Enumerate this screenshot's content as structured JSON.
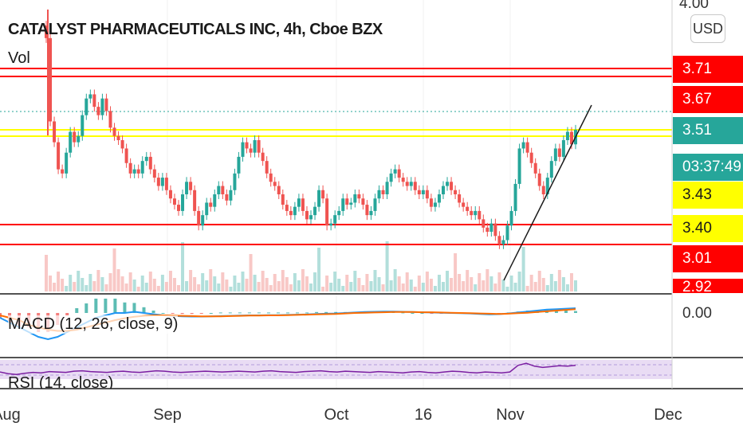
{
  "header": {
    "title": "CATALYST PHARMACEUTICALS INC, 4h, Cboe BZX",
    "volume_label": "Vol",
    "currency_button": "USD"
  },
  "indicators": {
    "macd_label": "MACD (12, 26, close, 9)",
    "rsi_label": "RSI (14, close)"
  },
  "price_axis": {
    "top_tick": "4.00",
    "macd_zero_tick": "0.00",
    "tags": [
      {
        "label": "3.71",
        "bg": "#ff0000",
        "fg": "#ffffff"
      },
      {
        "label": "3.67",
        "bg": "#ff0000",
        "fg": "#ffffff"
      },
      {
        "label": "3.51",
        "bg": "#26a69a",
        "fg": "#ffffff"
      },
      {
        "label": "03:37:49",
        "bg": "#26a69a",
        "fg": "#ffffff"
      },
      {
        "label": "3.43",
        "bg": "#ffff00",
        "fg": "#1a1a1a"
      },
      {
        "label": "3.40",
        "bg": "#ffff00",
        "fg": "#1a1a1a"
      },
      {
        "label": "3.01",
        "bg": "#ff0000",
        "fg": "#ffffff"
      },
      {
        "label": "2.92",
        "bg": "#ff0000",
        "fg": "#ffffff"
      }
    ]
  },
  "time_axis": [
    "Aug",
    "Sep",
    "Oct",
    "16",
    "Nov",
    "Dec"
  ],
  "colors": {
    "up": "#26a69a",
    "down": "#ef5350",
    "red_level": "#ff0000",
    "yellow_level": "#ffff00",
    "macd_line": "#2196f3",
    "signal_line": "#ff6d00",
    "rsi_line": "#7b1fa2",
    "rsi_band": "#e9dcf4"
  },
  "chart_data": {
    "type": "candlestick",
    "symbol": "CATALYST PHARMACEUTICALS INC",
    "interval": "4h",
    "exchange": "Cboe BZX",
    "horizontal_levels": [
      {
        "price": 3.71,
        "color": "red"
      },
      {
        "price": 3.67,
        "color": "red"
      },
      {
        "price": 3.43,
        "color": "yellow"
      },
      {
        "price": 3.4,
        "color": "yellow"
      },
      {
        "price": 3.01,
        "color": "red"
      },
      {
        "price": 2.92,
        "color": "red"
      }
    ],
    "current_price": 3.51,
    "bar_countdown": "03:37:49",
    "trendline": "ascending support from the late-October low to the latest bar",
    "xlabels": [
      "Aug",
      "Sep",
      "Oct",
      "16",
      "Nov",
      "Dec"
    ],
    "closes": [
      3.95,
      3.55,
      3.45,
      3.32,
      3.3,
      3.4,
      3.5,
      3.45,
      3.48,
      3.58,
      3.66,
      3.68,
      3.62,
      3.58,
      3.66,
      3.6,
      3.52,
      3.48,
      3.46,
      3.42,
      3.35,
      3.3,
      3.32,
      3.3,
      3.36,
      3.38,
      3.32,
      3.28,
      3.24,
      3.28,
      3.22,
      3.18,
      3.15,
      3.12,
      3.2,
      3.26,
      3.22,
      3.12,
      3.05,
      3.1,
      3.16,
      3.14,
      3.2,
      3.24,
      3.2,
      3.17,
      3.22,
      3.3,
      3.38,
      3.45,
      3.42,
      3.4,
      3.46,
      3.4,
      3.36,
      3.3,
      3.26,
      3.24,
      3.2,
      3.15,
      3.12,
      3.1,
      3.14,
      3.18,
      3.12,
      3.08,
      3.1,
      3.14,
      3.22,
      3.18,
      3.05,
      3.06,
      3.1,
      3.12,
      3.18,
      3.15,
      3.16,
      3.2,
      3.18,
      3.15,
      3.1,
      3.12,
      3.18,
      3.22,
      3.2,
      3.26,
      3.3,
      3.32,
      3.28,
      3.26,
      3.24,
      3.26,
      3.22,
      3.2,
      3.22,
      3.18,
      3.14,
      3.16,
      3.2,
      3.24,
      3.26,
      3.22,
      3.2,
      3.16,
      3.14,
      3.12,
      3.1,
      3.12,
      3.08,
      3.04,
      3.02,
      3.06,
      3.0,
      2.96,
      2.98,
      3.05,
      3.12,
      3.25,
      3.42,
      3.45,
      3.4,
      3.35,
      3.3,
      3.24,
      3.2,
      3.28,
      3.36,
      3.42,
      3.38,
      3.46,
      3.5,
      3.44,
      3.51
    ],
    "macd": [
      -0.02,
      -0.04,
      -0.06,
      -0.08,
      -0.1,
      -0.11,
      -0.1,
      -0.08,
      -0.06,
      -0.04,
      -0.02,
      -0.01,
      0.0,
      0.0,
      0.005,
      0.0,
      -0.005,
      -0.01,
      -0.012,
      -0.014,
      -0.015,
      -0.015,
      -0.014,
      -0.013,
      -0.012,
      -0.011,
      -0.01,
      -0.01,
      -0.009,
      -0.009,
      -0.008,
      -0.007,
      -0.006,
      -0.004,
      -0.003,
      -0.002,
      0.0,
      0.002,
      0.004,
      0.005,
      0.006,
      0.006,
      0.005,
      0.004,
      0.003,
      0.002,
      0.001,
      0.0,
      -0.001,
      -0.002,
      -0.004,
      -0.006,
      -0.005,
      -0.002,
      0.002,
      0.006,
      0.01,
      0.014,
      0.016,
      0.018,
      0.02
    ],
    "signal": [
      -0.01,
      -0.02,
      -0.03,
      -0.05,
      -0.06,
      -0.07,
      -0.075,
      -0.075,
      -0.07,
      -0.06,
      -0.05,
      -0.04,
      -0.03,
      -0.022,
      -0.016,
      -0.012,
      -0.01,
      -0.01,
      -0.011,
      -0.012,
      -0.013,
      -0.014,
      -0.014,
      -0.014,
      -0.013,
      -0.012,
      -0.011,
      -0.011,
      -0.01,
      -0.01,
      -0.009,
      -0.008,
      -0.007,
      -0.006,
      -0.005,
      -0.004,
      -0.002,
      0.0,
      0.001,
      0.002,
      0.003,
      0.004,
      0.004,
      0.004,
      0.003,
      0.003,
      0.002,
      0.001,
      0.0,
      -0.001,
      -0.002,
      -0.003,
      -0.004,
      -0.003,
      -0.001,
      0.001,
      0.004,
      0.007,
      0.01,
      0.013,
      0.016
    ],
    "rsi": [
      44,
      40,
      38,
      41,
      43,
      42,
      45,
      44,
      43,
      46,
      47,
      45,
      44,
      43,
      45,
      46,
      44,
      43,
      45,
      47,
      46,
      44,
      43,
      44,
      45,
      46,
      45,
      44,
      45,
      46,
      45,
      44,
      46,
      47,
      45,
      44,
      43,
      45,
      46,
      47,
      45,
      44,
      46,
      45,
      44,
      43,
      45,
      44,
      43,
      42,
      44,
      45,
      43,
      42,
      44,
      46,
      45,
      43,
      42,
      44,
      43,
      42,
      44,
      60,
      65,
      58,
      55,
      57,
      59,
      58,
      60
    ]
  }
}
